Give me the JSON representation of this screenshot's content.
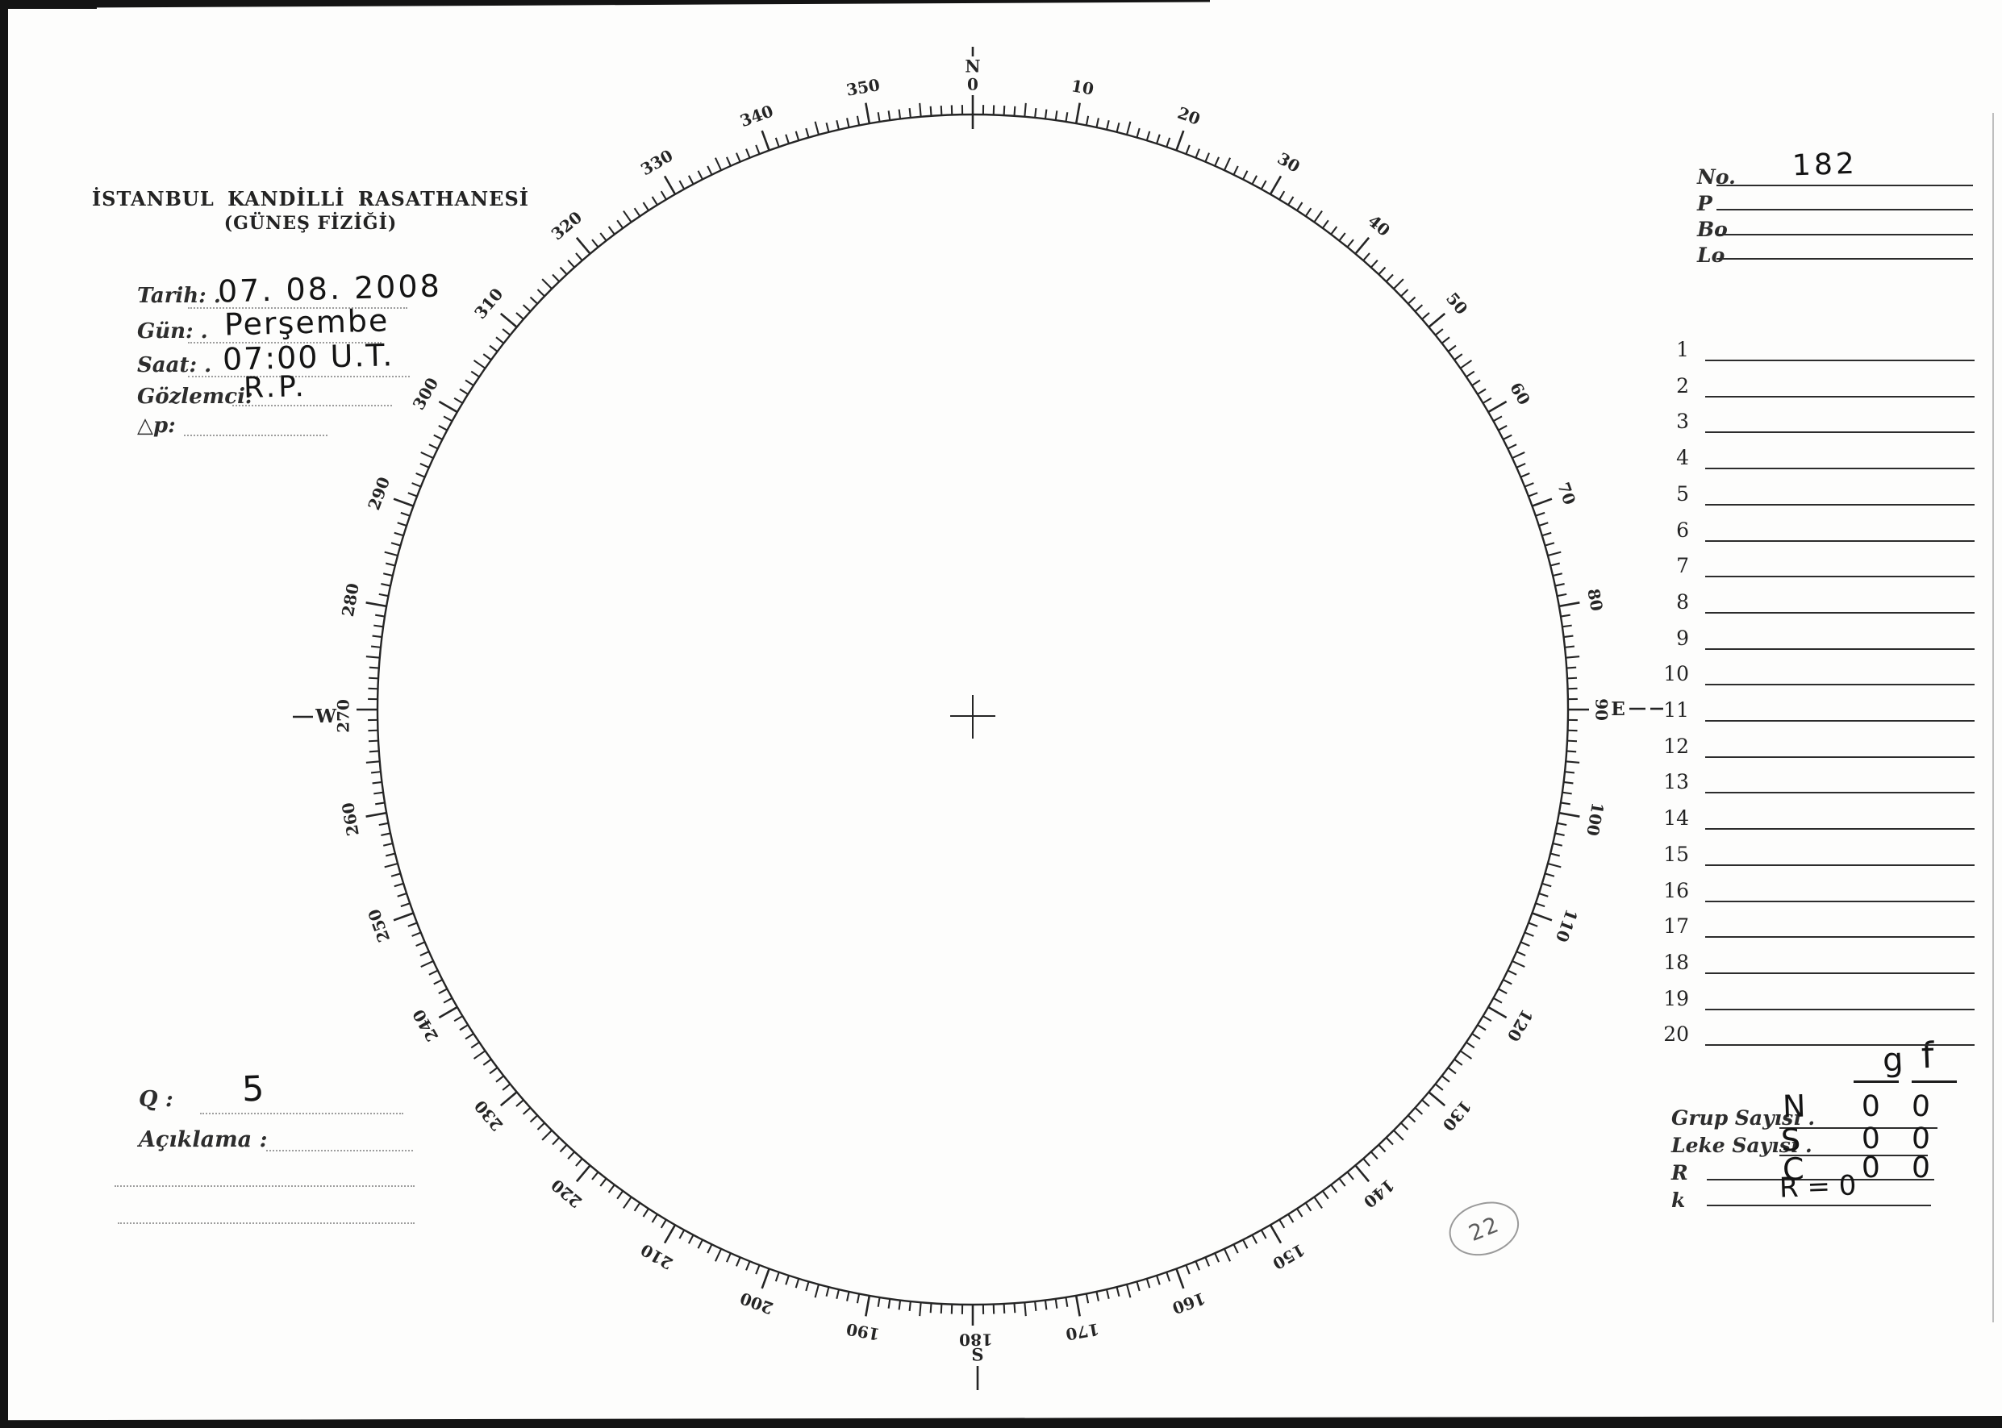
{
  "form": {
    "title": "İSTANBUL KANDİLLİ RASATHANESİ",
    "subtitle": "(GÜNEŞ FİZİĞİ)"
  },
  "observation_fields": [
    {
      "key": "tarih",
      "label": "Tarih: .",
      "value": "07. 08. 2008"
    },
    {
      "key": "gun",
      "label": "Gün: .",
      "value": "Perşembe"
    },
    {
      "key": "saat",
      "label": "Saat: .",
      "value": "07:00 U.T."
    },
    {
      "key": "gozlemci",
      "label": "Gözlemci:",
      "value": "R.P."
    },
    {
      "key": "dp",
      "label": "△p:",
      "value": ""
    }
  ],
  "quality": {
    "label": "Q :",
    "value": "5"
  },
  "aciklama_label": "Açıklama :",
  "right_panel": {
    "top_fields": [
      {
        "key": "no",
        "label": "No.",
        "value": "182"
      },
      {
        "key": "p",
        "label": "P",
        "value": ""
      },
      {
        "key": "bo",
        "label": "Bo",
        "value": ""
      },
      {
        "key": "lo",
        "label": "Lo",
        "value": ""
      }
    ],
    "entry_rows": [
      "1",
      "2",
      "3",
      "4",
      "5",
      "6",
      "7",
      "8",
      "9",
      "10",
      "11",
      "12",
      "13",
      "14",
      "15",
      "16",
      "17",
      "18",
      "19",
      "20"
    ],
    "column_headers": {
      "g": "g",
      "f": "f"
    },
    "summary_rows": [
      {
        "key": "grup",
        "label": "Grup Sayısı .",
        "hand": "N",
        "g": "0",
        "f": "0"
      },
      {
        "key": "leke",
        "label": "Leke Sayısı .",
        "hand": "S",
        "g": "0",
        "f": "0"
      },
      {
        "key": "r",
        "label": "R",
        "hand": "C",
        "g": "0",
        "f": "0"
      },
      {
        "key": "k",
        "label": "k",
        "hand": "R = 0",
        "g": "",
        "f": ""
      }
    ]
  },
  "protractor": {
    "cardinals": {
      "north": "N",
      "east": "E",
      "south": "S",
      "west": "W",
      "deg0": "0",
      "deg90": "90",
      "deg180": "180",
      "deg270": "270"
    },
    "tick_labels": [
      "10",
      "20",
      "30",
      "40",
      "50",
      "60",
      "70",
      "80",
      "100",
      "110",
      "120",
      "130",
      "140",
      "150",
      "160",
      "170",
      "190",
      "200",
      "210",
      "220",
      "230",
      "240",
      "250",
      "260",
      "280",
      "290",
      "300",
      "310",
      "320",
      "330",
      "340",
      "350"
    ]
  },
  "annotations": {
    "circled_number": "22"
  },
  "colors": {
    "ink": "#1f1f1f",
    "pencil": "#979797",
    "paper": "#fdfdfc"
  }
}
